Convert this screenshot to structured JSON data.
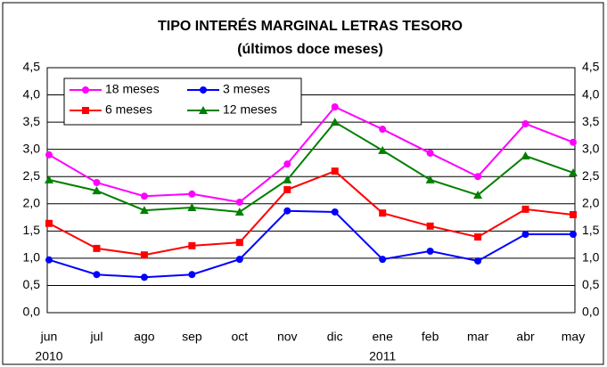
{
  "chart_data": {
    "type": "line",
    "title": "TIPO INTERÉS MARGINAL LETRAS TESORO",
    "subtitle": "(últimos doce meses)",
    "categories": [
      "jun",
      "jul",
      "ago",
      "sep",
      "oct",
      "nov",
      "dic",
      "ene",
      "feb",
      "mar",
      "abr",
      "may"
    ],
    "year_labels": [
      "2010",
      null,
      null,
      null,
      null,
      null,
      null,
      "2011",
      null,
      null,
      null,
      null
    ],
    "series": [
      {
        "name": "18 meses",
        "color": "#ff00ff",
        "marker": "circle",
        "values": [
          2.9,
          2.39,
          2.14,
          2.18,
          2.03,
          2.73,
          3.78,
          3.37,
          2.93,
          2.5,
          3.47,
          3.13
        ]
      },
      {
        "name": "3 meses",
        "color": "#0000ff",
        "marker": "circle",
        "values": [
          0.97,
          0.7,
          0.65,
          0.7,
          0.98,
          1.87,
          1.85,
          0.98,
          1.13,
          0.95,
          1.44,
          1.44
        ]
      },
      {
        "name": "6 meses",
        "color": "#ff0000",
        "marker": "square",
        "values": [
          1.64,
          1.18,
          1.06,
          1.23,
          1.29,
          2.26,
          2.6,
          1.83,
          1.59,
          1.39,
          1.9,
          1.8
        ]
      },
      {
        "name": "12 meses",
        "color": "#008000",
        "marker": "triangle",
        "values": [
          2.44,
          2.24,
          1.88,
          1.93,
          1.85,
          2.44,
          3.5,
          2.98,
          2.44,
          2.16,
          2.88,
          2.57
        ]
      }
    ],
    "ylim": [
      0,
      4.5
    ],
    "yticks": [
      {
        "value": 0,
        "label": "0,0"
      },
      {
        "value": 0.5,
        "label": "0,5"
      },
      {
        "value": 1,
        "label": "1,0"
      },
      {
        "value": 1.5,
        "label": "1,5"
      },
      {
        "value": 2,
        "label": "2,0"
      },
      {
        "value": 2.5,
        "label": "2,5"
      },
      {
        "value": 3,
        "label": "3,0"
      },
      {
        "value": 3.5,
        "label": "3,5"
      },
      {
        "value": 4,
        "label": "4,0"
      },
      {
        "value": 4.5,
        "label": "4,5"
      }
    ],
    "y2lim": [
      0,
      4.5
    ],
    "y2ticks": [
      {
        "value": 0,
        "label": "0,0"
      },
      {
        "value": 0.5,
        "label": "0,5"
      },
      {
        "value": 1,
        "label": "1,0"
      },
      {
        "value": 1.5,
        "label": "1,5"
      },
      {
        "value": 2,
        "label": "2,0"
      },
      {
        "value": 2.5,
        "label": "2,5"
      },
      {
        "value": 3,
        "label": "3,0"
      },
      {
        "value": 3.5,
        "label": "3,5"
      },
      {
        "value": 4,
        "label": "4,0"
      },
      {
        "value": 4.5,
        "label": "4,5"
      }
    ],
    "grid": true
  }
}
